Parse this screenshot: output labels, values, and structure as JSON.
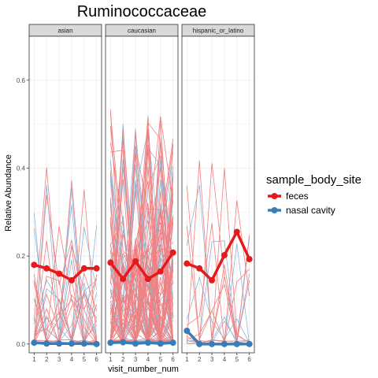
{
  "chart_data": {
    "type": "line",
    "title": "Ruminococcaceae",
    "xlabel": "visit_number_num",
    "ylabel": "Relative Abundance",
    "x": [
      1,
      2,
      3,
      4,
      5,
      6
    ],
    "x_tick_labels": [
      "1",
      "2",
      "3",
      "4",
      "5",
      "6"
    ],
    "ylim": [
      -0.02,
      0.7
    ],
    "y_ticks": [
      0.0,
      0.2,
      0.4,
      0.6
    ],
    "y_tick_labels": [
      "0.0",
      "0.2",
      "0.4",
      "0.6"
    ],
    "grid": true,
    "legend": {
      "title": "sample_body_site",
      "position": "right",
      "entries": [
        "feces",
        "nasal cavity"
      ]
    },
    "colors": {
      "feces": "#e41a1c",
      "nasal cavity": "#377eb8"
    },
    "facets": [
      {
        "label": "asian",
        "series": [
          {
            "name": "feces",
            "values": [
              0.18,
              0.172,
              0.16,
              0.145,
              0.172,
              0.172
            ]
          },
          {
            "name": "nasal cavity",
            "values": [
              0.003,
              0.001,
              0.001,
              0.001,
              0.001,
              0.0
            ]
          }
        ]
      },
      {
        "label": "caucasian",
        "series": [
          {
            "name": "feces",
            "values": [
              0.185,
              0.148,
              0.188,
              0.148,
              0.165,
              0.208
            ]
          },
          {
            "name": "nasal cavity",
            "values": [
              0.003,
              0.004,
              0.001,
              0.003,
              0.001,
              0.003
            ]
          }
        ]
      },
      {
        "label": "hispanic_or_latino",
        "series": [
          {
            "name": "feces",
            "values": [
              0.183,
              0.172,
              0.145,
              0.202,
              0.255,
              0.193
            ]
          },
          {
            "name": "nasal cavity",
            "values": [
              0.03,
              0.0,
              0.0,
              0.0,
              0.0,
              0.0
            ]
          }
        ]
      }
    ]
  }
}
